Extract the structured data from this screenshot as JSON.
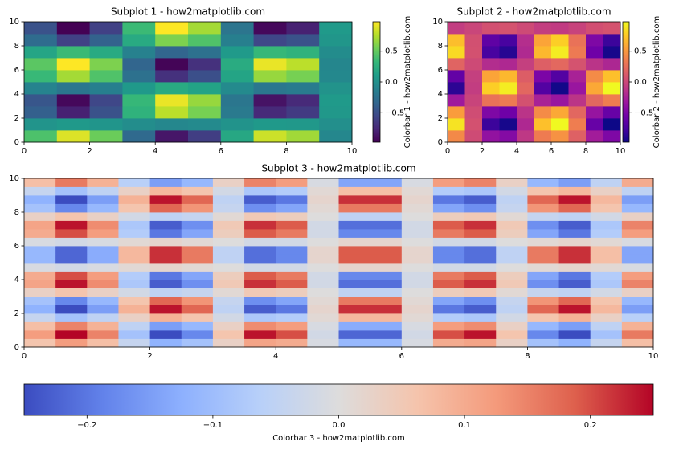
{
  "chart_data": [
    {
      "type": "heatmap",
      "title": "Subplot 1 - how2matplotlib.com",
      "colormap": "viridis",
      "x": [
        0.5,
        1.5,
        2.5,
        3.5,
        4.5,
        5.5,
        6.5,
        7.5,
        8.5,
        9.5
      ],
      "y": [
        0.5,
        1.5,
        2.5,
        3.5,
        4.5,
        5.5,
        6.5,
        7.5,
        8.5,
        9.5
      ],
      "values": [
        [
          0.42,
          0.88,
          0.53,
          -0.31,
          -0.86,
          -0.62,
          0.19,
          0.83,
          0.7,
          -0.07
        ],
        [
          0.03,
          0.07,
          0.04,
          -0.02,
          -0.07,
          -0.05,
          0.02,
          0.07,
          0.06,
          -0.01
        ],
        [
          -0.38,
          -0.8,
          -0.48,
          0.28,
          0.78,
          0.57,
          -0.18,
          -0.75,
          -0.64,
          0.06
        ],
        [
          -0.45,
          -0.94,
          -0.56,
          0.33,
          0.92,
          0.67,
          -0.21,
          -0.88,
          -0.75,
          0.08
        ],
        [
          -0.1,
          -0.21,
          -0.13,
          0.07,
          0.21,
          0.15,
          -0.05,
          -0.2,
          -0.17,
          0.02
        ],
        [
          0.34,
          0.71,
          0.43,
          -0.25,
          -0.7,
          -0.5,
          0.16,
          0.67,
          0.57,
          -0.06
        ],
        [
          0.47,
          0.98,
          0.59,
          -0.34,
          -0.96,
          -0.7,
          0.22,
          0.92,
          0.78,
          -0.08
        ],
        [
          0.17,
          0.35,
          0.21,
          -0.12,
          -0.34,
          -0.25,
          0.08,
          0.33,
          0.28,
          -0.03
        ],
        [
          -0.29,
          -0.6,
          -0.36,
          0.21,
          0.59,
          0.43,
          -0.13,
          -0.56,
          -0.48,
          0.05
        ],
        [
          -0.48,
          -1.0,
          -0.6,
          0.35,
          0.98,
          0.71,
          -0.22,
          -0.94,
          -0.8,
          0.08
        ]
      ],
      "xlim": [
        0,
        10
      ],
      "ylim": [
        0,
        10
      ],
      "xticks": [
        0,
        2,
        4,
        6,
        8,
        10
      ],
      "yticks": [
        0,
        2,
        4,
        6,
        8,
        10
      ],
      "colorbar": {
        "label": "Colorbar 1 - how2matplotlib.com",
        "lim": [
          -0.98,
          0.98
        ],
        "ticks": [
          {
            "value": -0.5,
            "label": "−0.5"
          },
          {
            "value": 0,
            "label": "0.0"
          },
          0.5
        ]
      }
    },
    {
      "type": "heatmap",
      "title": "Subplot 2 - how2matplotlib.com",
      "colormap": "plasma",
      "x": [
        0.5,
        1.5,
        2.5,
        3.5,
        4.5,
        5.5,
        6.5,
        7.5,
        8.5,
        9.5
      ],
      "y": [
        0.5,
        1.5,
        2.5,
        3.5,
        4.5,
        5.5,
        6.5,
        7.5,
        8.5,
        9.5
      ],
      "values": [
        [
          0.42,
          0.03,
          -0.38,
          -0.45,
          -0.1,
          0.34,
          0.47,
          0.17,
          -0.29,
          -0.48
        ],
        [
          0.88,
          0.07,
          -0.8,
          -0.94,
          -0.21,
          0.71,
          0.98,
          0.35,
          -0.6,
          -1.0
        ],
        [
          0.53,
          0.04,
          -0.48,
          -0.56,
          -0.13,
          0.43,
          0.59,
          0.21,
          -0.36,
          -0.6
        ],
        [
          -0.31,
          -0.02,
          0.28,
          0.33,
          0.07,
          -0.25,
          -0.34,
          -0.12,
          0.21,
          0.35
        ],
        [
          -0.86,
          -0.07,
          0.78,
          0.92,
          0.21,
          -0.7,
          -0.96,
          -0.34,
          0.59,
          0.98
        ],
        [
          -0.62,
          -0.05,
          0.57,
          0.67,
          0.15,
          -0.5,
          -0.7,
          -0.25,
          0.43,
          0.71
        ],
        [
          0.19,
          0.02,
          -0.18,
          -0.21,
          -0.05,
          0.16,
          0.22,
          0.08,
          -0.13,
          -0.22
        ],
        [
          0.83,
          0.07,
          -0.75,
          -0.88,
          -0.2,
          0.67,
          0.92,
          0.33,
          -0.56,
          -0.94
        ],
        [
          0.7,
          0.06,
          -0.64,
          -0.75,
          -0.17,
          0.57,
          0.78,
          0.28,
          -0.48,
          -0.8
        ],
        [
          -0.07,
          -0.01,
          0.06,
          0.08,
          0.02,
          -0.06,
          -0.08,
          -0.03,
          0.05,
          0.08
        ]
      ],
      "xlim": [
        0,
        10
      ],
      "ylim": [
        0,
        10
      ],
      "xticks": [
        0,
        2,
        4,
        6,
        8,
        10
      ],
      "yticks": [
        0,
        2,
        4,
        6,
        8,
        10
      ],
      "colorbar": {
        "label": "Colorbar 2 - how2matplotlib.com",
        "lim": [
          -0.98,
          0.98
        ],
        "ticks": [
          {
            "value": -0.5,
            "label": "−0.5"
          },
          {
            "value": 0,
            "label": "0.0"
          },
          0.5
        ]
      }
    },
    {
      "type": "heatmap",
      "title": "Subplot 3 - how2matplotlib.com",
      "colormap": "coolwarm",
      "x": [
        0.25,
        0.75,
        1.25,
        1.75,
        2.25,
        2.75,
        3.25,
        3.75,
        4.25,
        4.75,
        5.25,
        5.75,
        6.25,
        6.75,
        7.25,
        7.75,
        8.25,
        8.75,
        9.25,
        9.75
      ],
      "y": [
        0.25,
        0.75,
        1.25,
        1.75,
        2.25,
        2.75,
        3.25,
        3.75,
        4.25,
        4.75,
        5.25,
        5.75,
        6.25,
        6.75,
        7.25,
        7.75,
        8.25,
        8.75,
        9.25,
        9.75
      ],
      "values": [
        [
          0.06,
          0.12,
          0.07,
          -0.04,
          -0.12,
          -0.09,
          0.03,
          0.11,
          0.1,
          -0.01,
          -0.11,
          -0.11,
          -0.01,
          0.1,
          0.11,
          0.03,
          -0.09,
          -0.12,
          -0.04,
          0.07
        ],
        [
          0.12,
          0.25,
          0.15,
          -0.09,
          -0.25,
          -0.18,
          0.06,
          0.24,
          0.2,
          -0.02,
          -0.22,
          -0.22,
          -0.02,
          0.2,
          0.24,
          0.06,
          -0.18,
          -0.25,
          -0.09,
          0.16
        ],
        [
          0.07,
          0.15,
          0.09,
          -0.05,
          -0.15,
          -0.11,
          0.03,
          0.14,
          0.12,
          -0.01,
          -0.13,
          -0.13,
          -0.01,
          0.12,
          0.14,
          0.03,
          -0.11,
          -0.15,
          -0.05,
          0.09
        ],
        [
          -0.04,
          -0.09,
          -0.05,
          0.03,
          0.09,
          0.06,
          -0.02,
          -0.08,
          -0.07,
          0.01,
          0.08,
          0.08,
          0.01,
          -0.07,
          -0.08,
          -0.02,
          0.06,
          0.09,
          0.03,
          -0.06
        ],
        [
          -0.12,
          -0.25,
          -0.15,
          0.09,
          0.24,
          0.18,
          -0.05,
          -0.23,
          -0.2,
          0.02,
          0.22,
          0.22,
          0.02,
          -0.2,
          -0.23,
          -0.05,
          0.18,
          0.24,
          0.08,
          -0.15
        ],
        [
          -0.09,
          -0.18,
          -0.11,
          0.06,
          0.18,
          0.13,
          -0.04,
          -0.17,
          -0.14,
          0.01,
          0.16,
          0.16,
          0.01,
          -0.14,
          -0.17,
          -0.04,
          0.13,
          0.18,
          0.06,
          -0.11
        ],
        [
          0.03,
          0.06,
          0.03,
          -0.02,
          -0.05,
          -0.04,
          0.01,
          0.05,
          0.04,
          0,
          -0.05,
          -0.05,
          0,
          0.04,
          0.05,
          0.01,
          -0.04,
          -0.05,
          -0.02,
          0.03
        ],
        [
          0.11,
          0.24,
          0.14,
          -0.08,
          -0.23,
          -0.17,
          0.05,
          0.22,
          0.19,
          -0.02,
          -0.21,
          -0.21,
          -0.02,
          0.19,
          0.22,
          0.05,
          -0.17,
          -0.23,
          -0.08,
          0.15
        ],
        [
          0.1,
          0.2,
          0.12,
          -0.07,
          -0.2,
          -0.14,
          0.04,
          0.19,
          0.16,
          -0.02,
          -0.18,
          -0.18,
          -0.02,
          0.16,
          0.19,
          0.04,
          -0.14,
          -0.2,
          -0.07,
          0.12
        ],
        [
          -0.01,
          -0.02,
          -0.01,
          0.01,
          0.02,
          0.01,
          0,
          -0.02,
          -0.02,
          0,
          0.02,
          0.02,
          0,
          -0.02,
          -0.02,
          0,
          0.01,
          0.02,
          0.01,
          -0.01
        ],
        [
          -0.11,
          -0.22,
          -0.13,
          0.08,
          0.22,
          0.16,
          -0.05,
          -0.21,
          -0.18,
          0.02,
          0.19,
          0.19,
          0.02,
          -0.18,
          -0.21,
          -0.05,
          0.16,
          0.22,
          0.07,
          -0.14
        ],
        [
          -0.11,
          -0.22,
          -0.13,
          0.08,
          0.22,
          0.16,
          -0.05,
          -0.21,
          -0.18,
          0.02,
          0.19,
          0.19,
          0.02,
          -0.18,
          -0.21,
          -0.05,
          0.16,
          0.22,
          0.07,
          -0.14
        ],
        [
          -0.01,
          -0.02,
          -0.01,
          0.01,
          0.02,
          0.01,
          0,
          -0.02,
          -0.02,
          0,
          0.02,
          0.02,
          0,
          -0.02,
          -0.02,
          0,
          0.01,
          0.02,
          0.01,
          -0.01
        ],
        [
          0.1,
          0.2,
          0.12,
          -0.07,
          -0.2,
          -0.14,
          0.04,
          0.19,
          0.16,
          -0.02,
          -0.18,
          -0.18,
          -0.02,
          0.16,
          0.19,
          0.04,
          -0.14,
          -0.2,
          -0.07,
          0.12
        ],
        [
          0.11,
          0.24,
          0.14,
          -0.08,
          -0.23,
          -0.17,
          0.05,
          0.22,
          0.19,
          -0.02,
          -0.21,
          -0.21,
          -0.02,
          0.19,
          0.22,
          0.05,
          -0.17,
          -0.23,
          -0.08,
          0.15
        ],
        [
          0.03,
          0.06,
          0.03,
          -0.02,
          -0.05,
          -0.04,
          0.01,
          0.05,
          0.04,
          0,
          -0.05,
          -0.05,
          0,
          0.04,
          0.05,
          0.01,
          -0.04,
          -0.05,
          -0.02,
          0.03
        ],
        [
          -0.09,
          -0.18,
          -0.11,
          0.06,
          0.18,
          0.13,
          -0.04,
          -0.17,
          -0.14,
          0.01,
          0.16,
          0.16,
          0.01,
          -0.14,
          -0.17,
          -0.04,
          0.13,
          0.18,
          0.06,
          -0.11
        ],
        [
          -0.12,
          -0.25,
          -0.15,
          0.09,
          0.24,
          0.18,
          -0.05,
          -0.23,
          -0.2,
          0.02,
          0.22,
          0.22,
          0.02,
          -0.2,
          -0.23,
          -0.05,
          0.18,
          0.24,
          0.08,
          -0.15
        ],
        [
          -0.04,
          -0.09,
          -0.05,
          0.03,
          0.08,
          0.06,
          -0.02,
          -0.08,
          -0.07,
          0.01,
          0.07,
          0.07,
          0.01,
          -0.07,
          -0.08,
          -0.02,
          0.06,
          0.08,
          0.03,
          -0.05
        ],
        [
          0.07,
          0.16,
          0.09,
          -0.06,
          -0.15,
          -0.11,
          0.03,
          0.15,
          0.12,
          -0.01,
          -0.14,
          -0.14,
          -0.01,
          0.12,
          0.15,
          0.03,
          -0.11,
          -0.15,
          -0.05,
          0.1
        ]
      ],
      "xlim": [
        0,
        10
      ],
      "ylim": [
        0,
        10
      ],
      "xticks": [
        0,
        2,
        4,
        6,
        8,
        10
      ],
      "yticks": [
        0,
        2,
        4,
        6,
        8,
        10
      ],
      "colorbar": {
        "label": "Colorbar 3 - how2matplotlib.com",
        "lim": [
          -0.25,
          0.25
        ],
        "ticks": [
          {
            "value": -0.2,
            "label": "−0.2"
          },
          {
            "value": -0.1,
            "label": "−0.1"
          },
          {
            "value": 0,
            "label": "0.0"
          },
          0.1,
          0.2
        ]
      }
    }
  ]
}
